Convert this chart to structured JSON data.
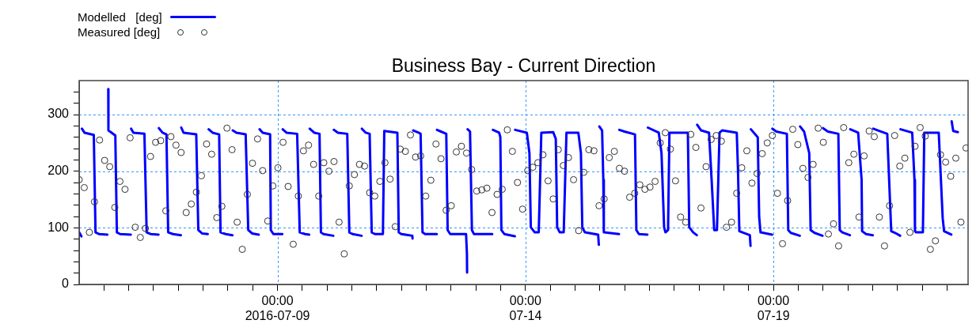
{
  "chart_data": {
    "type": "line",
    "title": "Business Bay - Current Direction",
    "legend": "top left",
    "grid": true,
    "xlim": [
      "2016-07-05T00:00",
      "2016-07-22T22:12"
    ],
    "xticks": [
      {
        "value": "2016-07-05T12:00",
        "label": null
      },
      {
        "value": "2016-07-06T00:00",
        "label": null
      },
      {
        "value": "2016-07-06T12:00",
        "label": null
      },
      {
        "value": "2016-07-07T00:00",
        "label": null
      },
      {
        "value": "2016-07-07T12:00",
        "label": null
      },
      {
        "value": "2016-07-08T00:00",
        "label": null
      },
      {
        "value": "2016-07-08T12:00",
        "label": null
      },
      {
        "value": "2016-07-09T00:00",
        "label": "00:00\n2016-07-09"
      },
      {
        "value": "2016-07-09T12:00",
        "label": null
      },
      {
        "value": "2016-07-10T00:00",
        "label": null
      },
      {
        "value": "2016-07-10T12:00",
        "label": null
      },
      {
        "value": "2016-07-11T00:00",
        "label": null
      },
      {
        "value": "2016-07-11T12:00",
        "label": null
      },
      {
        "value": "2016-07-12T00:00",
        "label": null
      },
      {
        "value": "2016-07-12T12:00",
        "label": null
      },
      {
        "value": "2016-07-13T00:00",
        "label": null
      },
      {
        "value": "2016-07-13T12:00",
        "label": null
      },
      {
        "value": "2016-07-14T00:00",
        "label": "00:00\n07-14"
      },
      {
        "value": "2016-07-14T12:00",
        "label": null
      },
      {
        "value": "2016-07-15T00:00",
        "label": null
      },
      {
        "value": "2016-07-15T12:00",
        "label": null
      },
      {
        "value": "2016-07-16T00:00",
        "label": null
      },
      {
        "value": "2016-07-16T12:00",
        "label": null
      },
      {
        "value": "2016-07-17T00:00",
        "label": null
      },
      {
        "value": "2016-07-17T12:00",
        "label": null
      },
      {
        "value": "2016-07-18T00:00",
        "label": null
      },
      {
        "value": "2016-07-18T12:00",
        "label": null
      },
      {
        "value": "2016-07-19T00:00",
        "label": "00:00\n07-19"
      },
      {
        "value": "2016-07-19T12:00",
        "label": null
      },
      {
        "value": "2016-07-20T00:00",
        "label": null
      },
      {
        "value": "2016-07-20T12:00",
        "label": null
      },
      {
        "value": "2016-07-21T00:00",
        "label": null
      },
      {
        "value": "2016-07-21T12:00",
        "label": null
      },
      {
        "value": "2016-07-22T00:00",
        "label": null
      },
      {
        "value": "2016-07-22T12:00",
        "label": null
      }
    ],
    "ylim": [
      0,
      360
    ],
    "yticks": [
      0,
      {
        "value": 20,
        "label": null
      },
      {
        "value": 40,
        "label": null
      },
      {
        "value": 60,
        "label": null
      },
      {
        "value": 80,
        "label": null
      },
      100,
      {
        "value": 120,
        "label": null
      },
      {
        "value": 140,
        "label": null
      },
      {
        "value": 160,
        "label": null
      },
      {
        "value": 180,
        "label": null
      },
      200,
      {
        "value": 220,
        "label": null
      },
      {
        "value": 240,
        "label": null
      },
      {
        "value": 260,
        "label": null
      },
      {
        "value": 280,
        "label": null
      },
      300,
      {
        "value": 320,
        "label": null
      },
      {
        "value": 340,
        "label": null
      }
    ],
    "series": [
      {
        "name": "Modelled   [deg]",
        "type": "line",
        "marker": "none",
        "color": "#0000ff",
        "x": [
          "2016-07-05T00:00",
          "2016-07-05T01:05",
          null,
          "2016-07-05T01:20",
          "2016-07-05T02:35",
          "2016-07-05T07:05",
          "2016-07-05T07:55",
          "2016-07-05T09:35",
          "2016-07-05T13:40",
          null,
          "2016-07-05T14:05",
          "2016-07-05T14:10",
          "2016-07-05T17:30",
          "2016-07-05T18:15",
          "2016-07-05T19:50",
          "2016-07-06T01:00",
          null,
          "2016-07-06T01:10",
          "2016-07-06T02:15",
          "2016-07-06T07:35",
          "2016-07-06T08:40",
          "2016-07-06T10:35",
          "2016-07-06T14:25",
          null,
          "2016-07-06T14:35",
          "2016-07-06T16:20",
          "2016-07-06T18:15",
          "2016-07-06T19:05",
          "2016-07-06T21:25",
          "2016-07-07T01:15",
          null,
          "2016-07-07T01:25",
          "2016-07-07T02:30",
          "2016-07-07T08:40",
          "2016-07-07T09:40",
          "2016-07-07T11:30",
          "2016-07-07T14:15",
          null,
          "2016-07-07T14:40",
          "2016-07-07T16:35",
          "2016-07-07T19:45",
          "2016-07-07T20:25",
          "2016-07-07T22:55",
          "2016-07-08T02:10",
          null,
          "2016-07-08T02:20",
          "2016-07-08T04:05",
          "2016-07-08T08:35",
          "2016-07-08T09:50",
          "2016-07-08T11:45",
          "2016-07-08T14:55",
          null,
          "2016-07-08T15:20",
          "2016-07-08T16:50",
          "2016-07-08T20:25",
          "2016-07-08T20:45",
          "2016-07-08T22:00",
          "2016-07-09T02:20",
          null,
          "2016-07-09T02:30",
          "2016-07-09T04:20",
          "2016-07-09T09:30",
          "2016-07-09T10:45",
          "2016-07-09T13:20",
          "2016-07-09T15:20",
          null,
          "2016-07-09T15:35",
          "2016-07-09T17:45",
          "2016-07-09T20:20",
          "2016-07-09T21:00",
          "2016-07-09T22:15",
          "2016-07-10T03:00",
          null,
          "2016-07-10T03:15",
          "2016-07-10T05:15",
          "2016-07-10T09:45",
          "2016-07-10T10:45",
          "2016-07-10T12:20",
          "2016-07-10T16:40",
          null,
          "2016-07-10T16:50",
          "2016-07-10T18:40",
          "2016-07-10T20:35",
          "2016-07-10T21:35",
          "2016-07-10T23:10",
          "2016-07-11T03:00",
          "2016-07-11T03:40",
          "2016-07-11T10:00",
          "2016-07-11T10:40",
          "2016-07-11T11:55",
          "2016-07-11T17:15",
          "2016-07-11T17:20",
          null,
          "2016-07-11T17:40",
          "2016-07-11T20:15",
          "2016-07-11T21:15",
          "2016-07-11T22:10",
          "2016-07-11T23:25",
          "2016-07-12T05:05",
          null,
          "2016-07-12T05:10",
          "2016-07-12T07:05",
          "2016-07-12T09:40",
          "2016-07-12T10:20",
          "2016-07-12T11:35",
          "2016-07-12T19:15",
          "2016-07-12T19:40",
          "2016-07-12T19:45",
          null,
          "2016-07-12T20:00",
          "2016-07-12T21:10",
          "2016-07-12T22:05",
          "2016-07-12T23:05",
          "2016-07-13T07:55",
          null,
          "2016-07-13T08:15",
          "2016-07-13T11:15",
          "2016-07-13T11:50",
          "2016-07-13T12:20",
          "2016-07-13T13:45",
          "2016-07-13T18:50",
          null,
          "2016-07-13T19:00",
          "2016-07-14T00:40",
          "2016-07-14T01:55",
          "2016-07-14T02:35",
          "2016-07-14T04:30",
          "2016-07-14T06:25",
          "2016-07-14T07:40",
          "2016-07-14T13:25",
          "2016-07-14T14:40",
          "2016-07-14T15:20",
          "2016-07-14T16:35",
          "2016-07-14T18:30",
          "2016-07-14T19:50",
          "2016-07-15T01:35",
          "2016-07-15T02:50",
          "2016-07-15T03:30",
          "2016-07-15T04:45",
          "2016-07-15T11:10",
          "2016-07-15T11:30",
          null,
          "2016-07-15T11:45",
          "2016-07-15T13:05",
          "2016-07-15T13:40",
          "2016-07-15T13:55",
          "2016-07-15T21:15",
          null,
          "2016-07-15T21:25",
          "2016-07-15T23:55",
          "2016-07-16T05:00",
          "2016-07-16T05:40",
          "2016-07-16T06:55",
          "2016-07-16T11:00",
          null,
          "2016-07-16T11:15",
          "2016-07-16T16:30",
          "2016-07-16T17:50",
          "2016-07-16T19:05",
          "2016-07-16T19:45",
          "2016-07-16T21:00",
          "2016-07-16T21:40",
          "2016-07-17T06:35",
          "2016-07-17T07:15",
          "2016-07-17T09:10",
          "2016-07-17T10:55",
          null,
          "2016-07-17T11:05",
          "2016-07-17T13:00",
          "2016-07-17T16:50",
          "2016-07-17T18:05",
          "2016-07-17T19:20",
          "2016-07-17T20:40",
          "2016-07-17T21:55",
          "2016-07-17T23:10",
          "2016-07-18T06:15",
          "2016-07-18T06:50",
          "2016-07-18T07:30",
          "2016-07-18T12:35",
          "2016-07-18T12:55",
          null,
          "2016-07-18T13:05",
          "2016-07-18T16:25",
          "2016-07-18T17:05",
          "2016-07-18T17:45",
          "2016-07-18T23:20",
          null,
          "2016-07-18T23:30",
          "2016-07-19T01:25",
          "2016-07-19T06:30",
          "2016-07-19T07:10",
          "2016-07-19T08:25",
          "2016-07-19T12:45",
          null,
          "2016-07-19T12:55",
          "2016-07-19T14:50",
          "2016-07-19T17:20",
          "2016-07-19T18:00",
          "2016-07-19T19:55",
          "2016-07-19T23:45",
          null,
          "2016-07-20T00:00",
          "2016-07-20T02:20",
          "2016-07-20T07:25",
          "2016-07-20T08:05",
          "2016-07-20T09:20",
          "2016-07-20T13:00",
          null,
          "2016-07-20T13:10",
          "2016-07-20T17:00",
          "2016-07-20T18:40",
          "2016-07-20T18:55",
          "2016-07-20T20:50",
          "2016-07-21T00:05",
          null,
          "2016-07-21T00:20",
          "2016-07-21T02:35",
          "2016-07-21T07:05",
          "2016-07-21T09:00",
          "2016-07-21T10:55",
          "2016-07-21T13:20",
          null,
          "2016-07-21T13:30",
          "2016-07-21T19:10",
          "2016-07-21T20:15",
          "2016-07-21T20:30",
          "2016-07-21T21:05",
          "2016-07-22T00:20",
          "2016-07-22T01:00",
          "2016-07-22T08:00",
          "2016-07-22T09:55",
          "2016-07-22T10:35",
          "2016-07-22T14:05",
          null,
          "2016-07-22T14:15",
          "2016-07-22T15:00",
          "2016-07-22T17:15"
        ],
        "values": [
          92,
          85,
          null,
          275,
          268,
          264,
          92,
          89,
          88,
          null,
          345,
          272,
          263,
          92,
          89,
          88,
          null,
          275,
          268,
          266,
          92,
          89,
          88,
          null,
          276,
          268,
          265,
          92,
          89,
          87,
          null,
          277,
          268,
          265,
          96,
          90,
          89,
          null,
          274,
          268,
          265,
          92,
          89,
          87,
          null,
          272,
          268,
          265,
          96,
          90,
          88,
          null,
          274,
          268,
          265,
          96,
          89,
          89,
          null,
          274,
          268,
          266,
          92,
          89,
          88,
          null,
          275,
          268,
          266,
          92,
          89,
          86,
          null,
          273,
          268,
          266,
          92,
          89,
          86,
          null,
          275,
          268,
          266,
          92,
          89,
          89,
          271,
          268,
          92,
          89,
          86,
          81,
          null,
          272,
          268,
          266,
          92,
          89,
          89,
          null,
          273,
          270,
          266,
          96,
          89,
          89,
          54,
          21,
          null,
          274,
          270,
          96,
          89,
          89,
          null,
          273,
          268,
          260,
          96,
          89,
          85,
          null,
          273,
          268,
          232,
          101,
          92,
          92,
          268,
          269,
          257,
          101,
          92,
          92,
          268,
          268,
          232,
          101,
          92,
          88,
          70,
          null,
          279,
          272,
          185,
          92,
          89,
          null,
          273,
          270,
          265,
          96,
          89,
          88,
          null,
          277,
          268,
          232,
          101,
          92,
          96,
          268,
          268,
          101,
          92,
          87,
          null,
          282,
          272,
          268,
          185,
          96,
          96,
          268,
          272,
          268,
          204,
          94,
          87,
          68,
          null,
          274,
          260,
          120,
          92,
          88,
          null,
          275,
          270,
          266,
          96,
          91,
          86,
          null,
          279,
          270,
          232,
          96,
          91,
          86,
          null,
          276,
          270,
          266,
          96,
          92,
          87,
          null,
          274,
          268,
          185,
          94,
          89,
          87,
          null,
          275,
          272,
          266,
          94,
          91,
          86,
          null,
          274,
          268,
          185,
          94,
          92,
          92,
          268,
          268,
          117,
          94,
          88,
          null,
          288,
          271,
          269
        ]
      },
      {
        "name": "Measured [deg]",
        "type": "scatter",
        "marker": "circle",
        "color": "#333333",
        "x": [
          "2016-07-05T00:00",
          "2016-07-05T02:28",
          "2016-07-05T04:56",
          "2016-07-05T07:24",
          "2016-07-05T09:52",
          "2016-07-05T12:20",
          "2016-07-05T14:48",
          "2016-07-05T17:16",
          "2016-07-05T19:44",
          "2016-07-05T22:12",
          "2016-07-06T00:40",
          "2016-07-06T03:08",
          "2016-07-06T05:36",
          "2016-07-06T08:04",
          "2016-07-06T10:32",
          "2016-07-06T13:00",
          "2016-07-06T15:28",
          "2016-07-06T17:56",
          "2016-07-06T20:24",
          "2016-07-06T22:52",
          "2016-07-07T01:20",
          "2016-07-07T03:48",
          "2016-07-07T06:16",
          "2016-07-07T08:44",
          "2016-07-07T11:12",
          "2016-07-07T13:40",
          "2016-07-07T16:08",
          "2016-07-07T18:36",
          "2016-07-07T21:04",
          "2016-07-07T23:32",
          "2016-07-08T02:00",
          "2016-07-08T04:28",
          "2016-07-08T06:56",
          "2016-07-08T09:24",
          "2016-07-08T11:52",
          "2016-07-08T14:20",
          "2016-07-08T16:48",
          "2016-07-08T19:16",
          "2016-07-08T21:44",
          "2016-07-09T00:12",
          "2016-07-09T02:40",
          "2016-07-09T05:08",
          "2016-07-09T07:36",
          "2016-07-09T10:04",
          "2016-07-09T12:32",
          "2016-07-09T15:00",
          "2016-07-09T17:28",
          "2016-07-09T19:56",
          "2016-07-09T22:24",
          "2016-07-10T00:52",
          "2016-07-10T03:20",
          "2016-07-10T05:48",
          "2016-07-10T08:16",
          "2016-07-10T10:44",
          "2016-07-10T13:12",
          "2016-07-10T15:40",
          "2016-07-10T18:08",
          "2016-07-10T20:36",
          "2016-07-10T23:04",
          "2016-07-11T01:32",
          "2016-07-11T04:00",
          "2016-07-11T06:28",
          "2016-07-11T08:56",
          "2016-07-11T11:24",
          "2016-07-11T13:52",
          "2016-07-11T16:20",
          "2016-07-11T18:48",
          "2016-07-11T21:16",
          "2016-07-11T23:44",
          "2016-07-12T02:12",
          "2016-07-12T04:40",
          "2016-07-12T07:08",
          "2016-07-12T09:36",
          "2016-07-12T12:04",
          "2016-07-12T14:32",
          "2016-07-12T17:00",
          "2016-07-12T19:28",
          "2016-07-12T21:56",
          "2016-07-13T00:24",
          "2016-07-13T02:52",
          "2016-07-13T05:20",
          "2016-07-13T07:48",
          "2016-07-13T10:16",
          "2016-07-13T12:44",
          "2016-07-13T15:12",
          "2016-07-13T17:40",
          "2016-07-13T20:08",
          "2016-07-13T22:36",
          "2016-07-14T01:04",
          "2016-07-14T03:32",
          "2016-07-14T06:00",
          "2016-07-14T08:28",
          "2016-07-14T10:56",
          "2016-07-14T13:24",
          "2016-07-14T15:52",
          "2016-07-14T18:20",
          "2016-07-14T20:48",
          "2016-07-14T23:16",
          "2016-07-15T01:44",
          "2016-07-15T04:12",
          "2016-07-15T06:40",
          "2016-07-15T09:08",
          "2016-07-15T11:36",
          "2016-07-15T14:04",
          "2016-07-15T16:32",
          "2016-07-15T19:00",
          "2016-07-15T21:28",
          "2016-07-15T23:56",
          "2016-07-16T02:24",
          "2016-07-16T04:52",
          "2016-07-16T07:20",
          "2016-07-16T09:48",
          "2016-07-16T12:16",
          "2016-07-16T14:44",
          "2016-07-16T17:12",
          "2016-07-16T19:40",
          "2016-07-16T22:08",
          "2016-07-17T00:36",
          "2016-07-17T03:04",
          "2016-07-17T05:32",
          "2016-07-17T08:00",
          "2016-07-17T10:28",
          "2016-07-17T12:56",
          "2016-07-17T15:24",
          "2016-07-17T17:52",
          "2016-07-17T20:20",
          "2016-07-17T22:48",
          "2016-07-18T01:16",
          "2016-07-18T03:44",
          "2016-07-18T06:12",
          "2016-07-18T08:40",
          "2016-07-18T11:08",
          "2016-07-18T13:36",
          "2016-07-18T16:04",
          "2016-07-18T18:32",
          "2016-07-18T21:00",
          "2016-07-18T23:28",
          "2016-07-19T01:56",
          "2016-07-19T04:24",
          "2016-07-19T06:52",
          "2016-07-19T09:20",
          "2016-07-19T11:48",
          "2016-07-19T14:16",
          "2016-07-19T16:44",
          "2016-07-19T19:12",
          "2016-07-19T21:40",
          "2016-07-20T00:08",
          "2016-07-20T02:36",
          "2016-07-20T05:04",
          "2016-07-20T07:32",
          "2016-07-20T10:00",
          "2016-07-20T12:28",
          "2016-07-20T14:56",
          "2016-07-20T17:24",
          "2016-07-20T19:52",
          "2016-07-20T22:20",
          "2016-07-21T00:48",
          "2016-07-21T03:16",
          "2016-07-21T05:44",
          "2016-07-21T08:12",
          "2016-07-21T10:40",
          "2016-07-21T13:08",
          "2016-07-21T15:36",
          "2016-07-21T18:04",
          "2016-07-21T20:32",
          "2016-07-21T23:00",
          "2016-07-22T01:28",
          "2016-07-22T03:56",
          "2016-07-22T06:24",
          "2016-07-22T08:52",
          "2016-07-22T11:20",
          "2016-07-22T13:48",
          "2016-07-22T16:16",
          "2016-07-22T18:44",
          "2016-07-22T21:12"
        ],
        "values": [
          185,
          171,
          92,
          146,
          255,
          219,
          208,
          136,
          182,
          168,
          259,
          101,
          83,
          99,
          226,
          251,
          254,
          130,
          261,
          246,
          233,
          127,
          142,
          163,
          192,
          248,
          230,
          118,
          138,
          276,
          238,
          110,
          62,
          159,
          214,
          257,
          201,
          112,
          174,
          206,
          251,
          173,
          71,
          156,
          236,
          246,
          212,
          156,
          215,
          200,
          217,
          110,
          54,
          174,
          194,
          212,
          209,
          162,
          156,
          182,
          215,
          186,
          102,
          239,
          235,
          264,
          225,
          227,
          156,
          184,
          248,
          222,
          131,
          139,
          234,
          244,
          232,
          203,
          165,
          167,
          170,
          127,
          159,
          168,
          273,
          235,
          180,
          133,
          201,
          207,
          215,
          229,
          183,
          151,
          238,
          210,
          224,
          185,
          95,
          198,
          238,
          236,
          139,
          151,
          224,
          235,
          205,
          200,
          154,
          161,
          176,
          168,
          172,
          182,
          250,
          268,
          239,
          183,
          119,
          110,
          265,
          242,
          135,
          208,
          256,
          263,
          253,
          101,
          110,
          161,
          206,
          236,
          179,
          196,
          231,
          250,
          263,
          161,
          72,
          148,
          274,
          247,
          205,
          189,
          212,
          276,
          251,
          89,
          107,
          68,
          277,
          215,
          230,
          119,
          227,
          271,
          261,
          119,
          68,
          139,
          263,
          209,
          223,
          92,
          244,
          277,
          262,
          62,
          77,
          229,
          216,
          191,
          223,
          110,
          241
        ]
      }
    ]
  }
}
